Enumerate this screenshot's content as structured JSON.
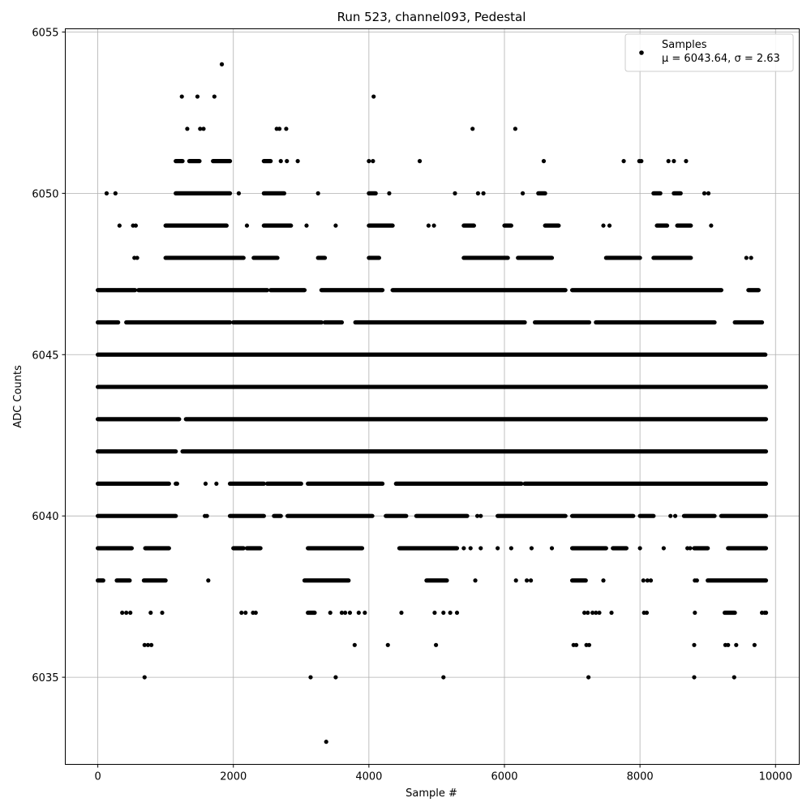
{
  "chart_data": {
    "type": "scatter",
    "title": "Run 523, channel093, Pedestal",
    "xlabel": "Sample #",
    "ylabel": "ADC Counts",
    "xlim": [
      -480,
      10350
    ],
    "ylim": [
      6032.3,
      6055.1
    ],
    "xticks": [
      0,
      2000,
      4000,
      6000,
      8000,
      10000
    ],
    "yticks": [
      6035,
      6040,
      6045,
      6050,
      6055
    ],
    "xtick_labels": [
      "0",
      "2000",
      "4000",
      "6000",
      "8000",
      "10000"
    ],
    "ytick_labels": [
      "6035",
      "6040",
      "6045",
      "6050",
      "6055"
    ],
    "grid": true,
    "legend_position": "top-right",
    "marker_color": "#000000",
    "series": [
      {
        "name": "Samples",
        "stats_label": "μ = 6043.64, σ = 2.63",
        "mean": 6043.64,
        "sigma": 2.63,
        "n_samples": 9860,
        "x_range": [
          0,
          9859
        ],
        "level_segments": [
          {
            "y": 6047,
            "ranges": [
              [
                0,
                550
              ],
              [
                600,
                2500
              ],
              [
                2550,
                3050
              ],
              [
                3300,
                4200
              ],
              [
                4350,
                6900
              ],
              [
                7000,
                9200
              ],
              [
                9600,
                9750
              ]
            ]
          },
          {
            "y": 6046,
            "ranges": [
              [
                0,
                300
              ],
              [
                420,
                1950
              ],
              [
                2000,
                3300
              ],
              [
                3350,
                3600
              ],
              [
                3800,
                6300
              ],
              [
                6450,
                7250
              ],
              [
                7350,
                9100
              ],
              [
                9400,
                9800
              ]
            ]
          },
          {
            "y": 6045,
            "ranges": [
              [
                0,
                9850
              ]
            ]
          },
          {
            "y": 6044,
            "ranges": [
              [
                0,
                9859
              ]
            ]
          },
          {
            "y": 6043,
            "ranges": [
              [
                0,
                1200
              ],
              [
                1300,
                9859
              ]
            ]
          },
          {
            "y": 6042,
            "ranges": [
              [
                0,
                1150
              ],
              [
                1250,
                9859
              ]
            ]
          },
          {
            "y": 6041,
            "ranges": [
              [
                0,
                1050
              ],
              [
                1150,
                1170
              ],
              [
                1950,
                2450
              ],
              [
                2500,
                3000
              ],
              [
                3100,
                4200
              ],
              [
                4400,
                6250
              ],
              [
                6300,
                9859
              ]
            ]
          },
          {
            "y": 6040,
            "ranges": [
              [
                0,
                1150
              ],
              [
                1950,
                2450
              ],
              [
                2600,
                2700
              ],
              [
                2800,
                4050
              ],
              [
                4250,
                4550
              ],
              [
                4700,
                5450
              ],
              [
                5900,
                6900
              ],
              [
                7000,
                7900
              ],
              [
                8000,
                8200
              ],
              [
                8650,
                9100
              ],
              [
                9200,
                9859
              ]
            ]
          },
          {
            "y": 6039,
            "ranges": [
              [
                0,
                500
              ],
              [
                700,
                1050
              ],
              [
                2000,
                2150
              ],
              [
                2200,
                2400
              ],
              [
                3100,
                3900
              ],
              [
                4450,
                5300
              ],
              [
                7000,
                7500
              ],
              [
                7600,
                7800
              ],
              [
                8800,
                9000
              ],
              [
                9300,
                9859
              ]
            ]
          },
          {
            "y": 6038,
            "ranges": [
              [
                0,
                80
              ],
              [
                280,
                470
              ],
              [
                680,
                1000
              ],
              [
                3050,
                3700
              ],
              [
                4850,
                5150
              ],
              [
                7000,
                7200
              ],
              [
                9000,
                9859
              ]
            ]
          },
          {
            "y": 6048,
            "ranges": [
              [
                1000,
                2150
              ],
              [
                2300,
                2650
              ],
              [
                3250,
                3350
              ],
              [
                4000,
                4150
              ],
              [
                5400,
                6050
              ],
              [
                6200,
                6700
              ],
              [
                7500,
                8000
              ],
              [
                8200,
                8750
              ]
            ]
          },
          {
            "y": 6049,
            "ranges": [
              [
                1000,
                1900
              ],
              [
                2450,
                2850
              ],
              [
                4000,
                4350
              ],
              [
                5400,
                5550
              ],
              [
                6000,
                6100
              ],
              [
                6600,
                6800
              ],
              [
                8250,
                8400
              ],
              [
                8550,
                8750
              ]
            ]
          },
          {
            "y": 6050,
            "ranges": [
              [
                1150,
                1950
              ],
              [
                2450,
                2750
              ],
              [
                4000,
                4100
              ],
              [
                6500,
                6600
              ],
              [
                8200,
                8300
              ],
              [
                8500,
                8600
              ]
            ]
          },
          {
            "y": 6051,
            "ranges": [
              [
                1150,
                1250
              ],
              [
                1350,
                1500
              ],
              [
                1700,
                1950
              ],
              [
                2450,
                2550
              ]
            ]
          },
          {
            "y": 6037,
            "ranges": [
              [
                3100,
                3200
              ],
              [
                9250,
                9400
              ]
            ]
          }
        ],
        "points": [
          [
            130,
            6050
          ],
          [
            260,
            6050
          ],
          [
            320,
            6049
          ],
          [
            520,
            6049
          ],
          [
            560,
            6049
          ],
          [
            540,
            6048
          ],
          [
            580,
            6048
          ],
          [
            1240,
            6053
          ],
          [
            1320,
            6052
          ],
          [
            1470,
            6053
          ],
          [
            1510,
            6052
          ],
          [
            1560,
            6052
          ],
          [
            1720,
            6053
          ],
          [
            1830,
            6054
          ],
          [
            2080,
            6050
          ],
          [
            2640,
            6052
          ],
          [
            2680,
            6052
          ],
          [
            2780,
            6052
          ],
          [
            2700,
            6051
          ],
          [
            2790,
            6051
          ],
          [
            2950,
            6051
          ],
          [
            3250,
            6050
          ],
          [
            3510,
            6049
          ],
          [
            4000,
            6051
          ],
          [
            4060,
            6051
          ],
          [
            4070,
            6053
          ],
          [
            4300,
            6050
          ],
          [
            4750,
            6051
          ],
          [
            4880,
            6049
          ],
          [
            4960,
            6049
          ],
          [
            5270,
            6050
          ],
          [
            5530,
            6052
          ],
          [
            5610,
            6050
          ],
          [
            5690,
            6050
          ],
          [
            6160,
            6052
          ],
          [
            6270,
            6050
          ],
          [
            6580,
            6051
          ],
          [
            7760,
            6051
          ],
          [
            7990,
            6051
          ],
          [
            8020,
            6051
          ],
          [
            8420,
            6051
          ],
          [
            8500,
            6051
          ],
          [
            8680,
            6051
          ],
          [
            8950,
            6050
          ],
          [
            9010,
            6050
          ],
          [
            9050,
            6049
          ],
          [
            9570,
            6048
          ],
          [
            9640,
            6048
          ],
          [
            2200,
            6049
          ],
          [
            3080,
            6049
          ],
          [
            7460,
            6049
          ],
          [
            7550,
            6049
          ],
          [
            360,
            6037
          ],
          [
            420,
            6037
          ],
          [
            480,
            6037
          ],
          [
            780,
            6037
          ],
          [
            950,
            6037
          ],
          [
            2120,
            6037
          ],
          [
            2180,
            6037
          ],
          [
            2290,
            6037
          ],
          [
            3430,
            6037
          ],
          [
            3600,
            6037
          ],
          [
            3650,
            6037
          ],
          [
            3720,
            6037
          ],
          [
            3850,
            6037
          ],
          [
            3940,
            6037
          ],
          [
            4480,
            6037
          ],
          [
            4970,
            6037
          ],
          [
            5100,
            6037
          ],
          [
            5200,
            6037
          ],
          [
            5300,
            6037
          ],
          [
            7180,
            6037
          ],
          [
            7230,
            6037
          ],
          [
            7300,
            6037
          ],
          [
            7350,
            6037
          ],
          [
            7400,
            6037
          ],
          [
            7580,
            6037
          ],
          [
            8060,
            6037
          ],
          [
            8100,
            6037
          ],
          [
            8810,
            6037
          ],
          [
            9800,
            6037
          ],
          [
            9840,
            6037
          ],
          [
            9860,
            6037
          ],
          [
            690,
            6036
          ],
          [
            740,
            6036
          ],
          [
            790,
            6036
          ],
          [
            3790,
            6036
          ],
          [
            4990,
            6036
          ],
          [
            7020,
            6036
          ],
          [
            7060,
            6036
          ],
          [
            7210,
            6036
          ],
          [
            7250,
            6036
          ],
          [
            8800,
            6036
          ],
          [
            9260,
            6036
          ],
          [
            9300,
            6036
          ],
          [
            9420,
            6036
          ],
          [
            9690,
            6036
          ],
          [
            690,
            6035
          ],
          [
            3140,
            6035
          ],
          [
            3510,
            6035
          ],
          [
            5100,
            6035
          ],
          [
            7240,
            6035
          ],
          [
            8800,
            6035
          ],
          [
            9390,
            6035
          ],
          [
            3370,
            6033
          ],
          [
            1630,
            6038
          ],
          [
            1580,
            6040
          ],
          [
            1610,
            6040
          ],
          [
            1590,
            6041
          ],
          [
            1750,
            6041
          ],
          [
            5570,
            6038
          ],
          [
            6170,
            6038
          ],
          [
            6330,
            6038
          ],
          [
            6390,
            6038
          ],
          [
            7460,
            6038
          ],
          [
            8050,
            6038
          ],
          [
            8110,
            6038
          ],
          [
            8160,
            6038
          ],
          [
            8810,
            6038
          ],
          [
            8840,
            6038
          ],
          [
            4280,
            6036
          ],
          [
            2330,
            6037
          ],
          [
            5400,
            6039
          ],
          [
            5500,
            6039
          ],
          [
            5650,
            6039
          ],
          [
            5900,
            6039
          ],
          [
            6100,
            6039
          ],
          [
            6400,
            6039
          ],
          [
            6700,
            6039
          ],
          [
            8000,
            6039
          ],
          [
            8350,
            6039
          ],
          [
            8700,
            6039
          ],
          [
            8740,
            6039
          ],
          [
            5600,
            6040
          ],
          [
            5650,
            6040
          ],
          [
            8450,
            6040
          ],
          [
            8520,
            6040
          ]
        ]
      }
    ]
  }
}
